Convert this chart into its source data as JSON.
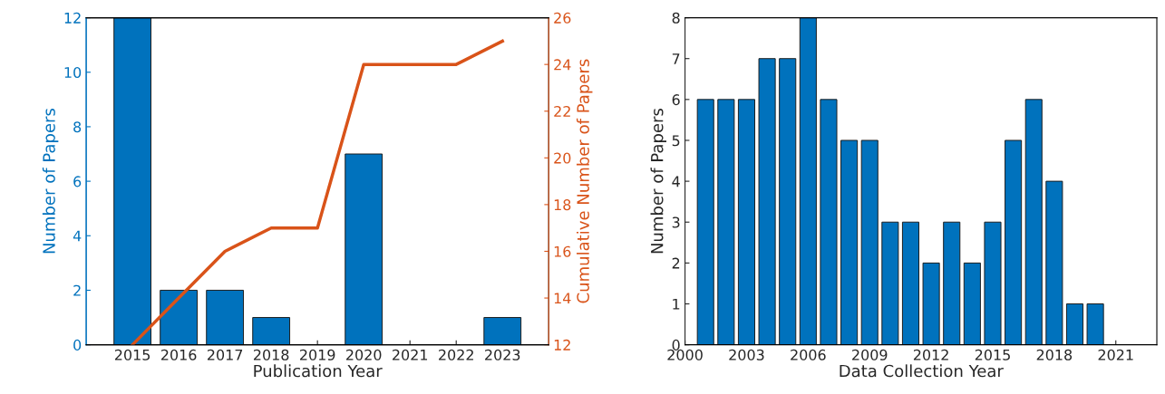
{
  "chart_data": [
    {
      "type": "bar",
      "xlabel": "Publication Year",
      "ylabel": "Number of Papers",
      "y2label": "Cumulative Number of Papers",
      "categories": [
        "2015",
        "2016",
        "2017",
        "2018",
        "2019",
        "2020",
        "2021",
        "2022",
        "2023"
      ],
      "series": [
        {
          "color": "#0072bd",
          "values": [
            12,
            2,
            2,
            1,
            0,
            7,
            0,
            0,
            1
          ]
        },
        {
          "type": "line",
          "color": "#d95319",
          "axis": "y2",
          "values": [
            12,
            14,
            16,
            17,
            17,
            24,
            24,
            24,
            25
          ]
        }
      ],
      "ylim": [
        0,
        12
      ],
      "yticks": [
        0,
        2,
        4,
        6,
        8,
        10,
        12
      ],
      "y2lim": [
        12,
        26
      ],
      "y2ticks": [
        12,
        14,
        16,
        18,
        20,
        22,
        24,
        26
      ],
      "grid": false,
      "marker": "none",
      "line_style": "solid"
    },
    {
      "type": "bar",
      "xlabel": "Data Collection Year",
      "ylabel": "Number of Papers",
      "x": [
        2001,
        2002,
        2003,
        2004,
        2005,
        2006,
        2007,
        2008,
        2009,
        2010,
        2011,
        2012,
        2013,
        2014,
        2015,
        2016,
        2017,
        2018,
        2019,
        2020
      ],
      "series": [
        {
          "color": "#0072bd",
          "values": [
            6,
            6,
            6,
            7,
            7,
            8,
            6,
            5,
            5,
            3,
            3,
            2,
            3,
            2,
            3,
            5,
            6,
            4,
            1,
            1
          ]
        }
      ],
      "xlim": [
        2000,
        2023
      ],
      "xticks": [
        2000,
        2003,
        2006,
        2009,
        2012,
        2015,
        2018,
        2021
      ],
      "ylim": [
        0,
        8
      ],
      "yticks": [
        0,
        1,
        2,
        3,
        4,
        5,
        6,
        7,
        8
      ],
      "grid": false
    }
  ]
}
